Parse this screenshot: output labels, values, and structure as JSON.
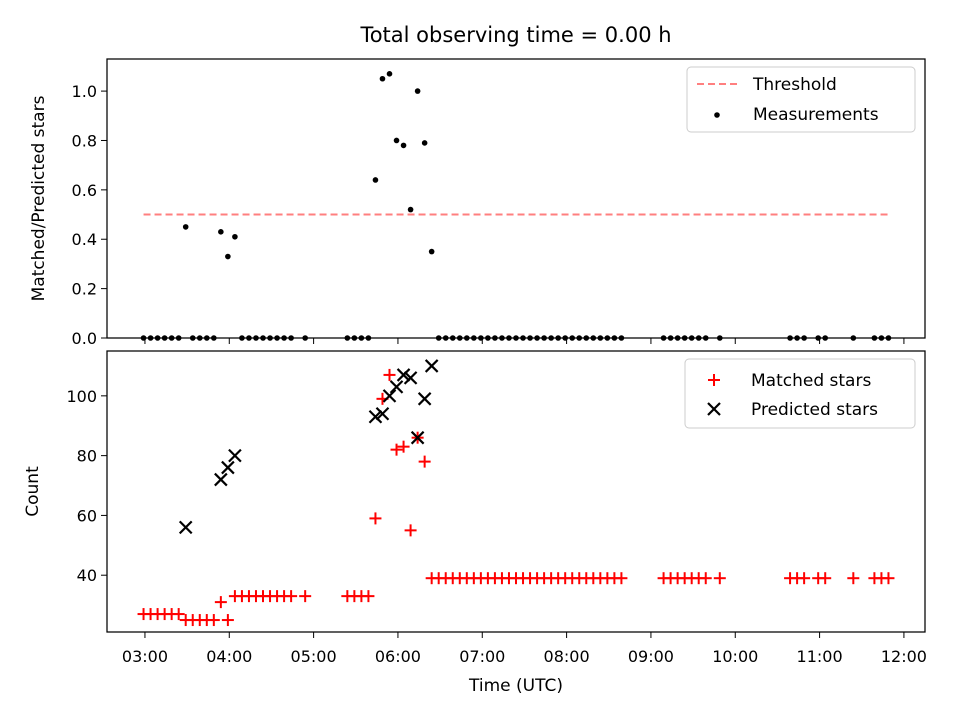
{
  "chart_data": [
    {
      "type": "scatter",
      "title": "Total observing time = 0.00 h",
      "ylabel": "Matched/Predicted stars",
      "xlabel": "",
      "xlim": [
        "02:33",
        "12:15"
      ],
      "ylim": [
        0,
        1.13
      ],
      "y_ticks": [
        "0.0",
        "0.2",
        "0.4",
        "0.6",
        "0.8",
        "1.0"
      ],
      "legend_position": "top-right",
      "grid": false,
      "series": [
        {
          "name": "Threshold",
          "kind": "dashed-line",
          "color": "#ff7f7f",
          "x": [
            "02:59",
            "11:50"
          ],
          "y": [
            0.5,
            0.5
          ]
        },
        {
          "name": "Measurements",
          "kind": "dot",
          "color": "#000000",
          "points": [
            [
              "02:59",
              0
            ],
            [
              "03:04",
              0
            ],
            [
              "03:09",
              0
            ],
            [
              "03:14",
              0
            ],
            [
              "03:19",
              0
            ],
            [
              "03:24",
              0
            ],
            [
              "03:29",
              0.45
            ],
            [
              "03:34",
              0
            ],
            [
              "03:39",
              0
            ],
            [
              "03:44",
              0
            ],
            [
              "03:49",
              0
            ],
            [
              "03:54",
              0.43
            ],
            [
              "03:59",
              0.33
            ],
            [
              "04:04",
              0.41
            ],
            [
              "04:09",
              0
            ],
            [
              "04:14",
              0
            ],
            [
              "04:19",
              0
            ],
            [
              "04:24",
              0
            ],
            [
              "04:29",
              0
            ],
            [
              "04:34",
              0
            ],
            [
              "04:39",
              0
            ],
            [
              "04:44",
              0
            ],
            [
              "04:54",
              0
            ],
            [
              "05:24",
              0
            ],
            [
              "05:29",
              0
            ],
            [
              "05:34",
              0
            ],
            [
              "05:39",
              0
            ],
            [
              "05:44",
              0.64
            ],
            [
              "05:49",
              1.05
            ],
            [
              "05:54",
              1.07
            ],
            [
              "05:59",
              0.8
            ],
            [
              "06:04",
              0.78
            ],
            [
              "06:09",
              0.52
            ],
            [
              "06:14",
              1.0
            ],
            [
              "06:19",
              0.79
            ],
            [
              "06:24",
              0.35
            ],
            [
              "06:29",
              0
            ],
            [
              "06:34",
              0
            ],
            [
              "06:39",
              0
            ],
            [
              "06:44",
              0
            ],
            [
              "06:49",
              0
            ],
            [
              "06:54",
              0
            ],
            [
              "06:59",
              0
            ],
            [
              "07:04",
              0
            ],
            [
              "07:09",
              0
            ],
            [
              "07:14",
              0
            ],
            [
              "07:19",
              0
            ],
            [
              "07:24",
              0
            ],
            [
              "07:29",
              0
            ],
            [
              "07:34",
              0
            ],
            [
              "07:39",
              0
            ],
            [
              "07:44",
              0
            ],
            [
              "07:49",
              0
            ],
            [
              "07:54",
              0
            ],
            [
              "07:59",
              0
            ],
            [
              "08:04",
              0
            ],
            [
              "08:09",
              0
            ],
            [
              "08:14",
              0
            ],
            [
              "08:19",
              0
            ],
            [
              "08:24",
              0
            ],
            [
              "08:29",
              0
            ],
            [
              "08:34",
              0
            ],
            [
              "08:39",
              0
            ],
            [
              "09:09",
              0
            ],
            [
              "09:14",
              0
            ],
            [
              "09:19",
              0
            ],
            [
              "09:24",
              0
            ],
            [
              "09:29",
              0
            ],
            [
              "09:34",
              0
            ],
            [
              "09:39",
              0
            ],
            [
              "09:49",
              0
            ],
            [
              "10:39",
              0
            ],
            [
              "10:44",
              0
            ],
            [
              "10:49",
              0
            ],
            [
              "10:59",
              0
            ],
            [
              "11:04",
              0
            ],
            [
              "11:24",
              0
            ],
            [
              "11:39",
              0
            ],
            [
              "11:44",
              0
            ],
            [
              "11:49",
              0
            ]
          ]
        }
      ]
    },
    {
      "type": "scatter",
      "title": "",
      "xlabel": "Time (UTC)",
      "ylabel": "Count",
      "xlim": [
        "02:33",
        "12:15"
      ],
      "ylim": [
        21,
        115
      ],
      "x_ticks": [
        "03:00",
        "04:00",
        "05:00",
        "06:00",
        "07:00",
        "08:00",
        "09:00",
        "10:00",
        "11:00",
        "12:00"
      ],
      "y_ticks": [
        "40",
        "60",
        "80",
        "100"
      ],
      "legend_position": "top-right",
      "grid": false,
      "series": [
        {
          "name": "Matched stars",
          "kind": "plus",
          "color": "#ff0000",
          "points": [
            [
              "02:59",
              27
            ],
            [
              "03:04",
              27
            ],
            [
              "03:09",
              27
            ],
            [
              "03:14",
              27
            ],
            [
              "03:19",
              27
            ],
            [
              "03:24",
              27
            ],
            [
              "03:29",
              25
            ],
            [
              "03:34",
              25
            ],
            [
              "03:39",
              25
            ],
            [
              "03:44",
              25
            ],
            [
              "03:49",
              25
            ],
            [
              "03:54",
              31
            ],
            [
              "03:59",
              25
            ],
            [
              "04:04",
              33
            ],
            [
              "04:09",
              33
            ],
            [
              "04:14",
              33
            ],
            [
              "04:19",
              33
            ],
            [
              "04:24",
              33
            ],
            [
              "04:29",
              33
            ],
            [
              "04:34",
              33
            ],
            [
              "04:39",
              33
            ],
            [
              "04:44",
              33
            ],
            [
              "04:54",
              33
            ],
            [
              "05:24",
              33
            ],
            [
              "05:29",
              33
            ],
            [
              "05:34",
              33
            ],
            [
              "05:39",
              33
            ],
            [
              "05:44",
              59
            ],
            [
              "05:49",
              99
            ],
            [
              "05:54",
              107
            ],
            [
              "05:59",
              82
            ],
            [
              "06:04",
              83
            ],
            [
              "06:09",
              55
            ],
            [
              "06:14",
              86
            ],
            [
              "06:19",
              78
            ],
            [
              "06:24",
              39
            ],
            [
              "06:29",
              39
            ],
            [
              "06:34",
              39
            ],
            [
              "06:39",
              39
            ],
            [
              "06:44",
              39
            ],
            [
              "06:49",
              39
            ],
            [
              "06:54",
              39
            ],
            [
              "06:59",
              39
            ],
            [
              "07:04",
              39
            ],
            [
              "07:09",
              39
            ],
            [
              "07:14",
              39
            ],
            [
              "07:19",
              39
            ],
            [
              "07:24",
              39
            ],
            [
              "07:29",
              39
            ],
            [
              "07:34",
              39
            ],
            [
              "07:39",
              39
            ],
            [
              "07:44",
              39
            ],
            [
              "07:49",
              39
            ],
            [
              "07:54",
              39
            ],
            [
              "07:59",
              39
            ],
            [
              "08:04",
              39
            ],
            [
              "08:09",
              39
            ],
            [
              "08:14",
              39
            ],
            [
              "08:19",
              39
            ],
            [
              "08:24",
              39
            ],
            [
              "08:29",
              39
            ],
            [
              "08:34",
              39
            ],
            [
              "08:39",
              39
            ],
            [
              "09:09",
              39
            ],
            [
              "09:14",
              39
            ],
            [
              "09:19",
              39
            ],
            [
              "09:24",
              39
            ],
            [
              "09:29",
              39
            ],
            [
              "09:34",
              39
            ],
            [
              "09:39",
              39
            ],
            [
              "09:49",
              39
            ],
            [
              "10:39",
              39
            ],
            [
              "10:44",
              39
            ],
            [
              "10:49",
              39
            ],
            [
              "10:59",
              39
            ],
            [
              "11:04",
              39
            ],
            [
              "11:24",
              39
            ],
            [
              "11:39",
              39
            ],
            [
              "11:44",
              39
            ],
            [
              "11:49",
              39
            ]
          ]
        },
        {
          "name": "Predicted stars",
          "kind": "x",
          "color": "#000000",
          "points": [
            [
              "03:29",
              56
            ],
            [
              "03:54",
              72
            ],
            [
              "03:59",
              76
            ],
            [
              "04:04",
              80
            ],
            [
              "05:44",
              93
            ],
            [
              "05:49",
              94
            ],
            [
              "05:54",
              100
            ],
            [
              "05:59",
              103
            ],
            [
              "06:04",
              107
            ],
            [
              "06:09",
              106
            ],
            [
              "06:14",
              86
            ],
            [
              "06:19",
              99
            ],
            [
              "06:24",
              110
            ]
          ]
        }
      ]
    }
  ]
}
